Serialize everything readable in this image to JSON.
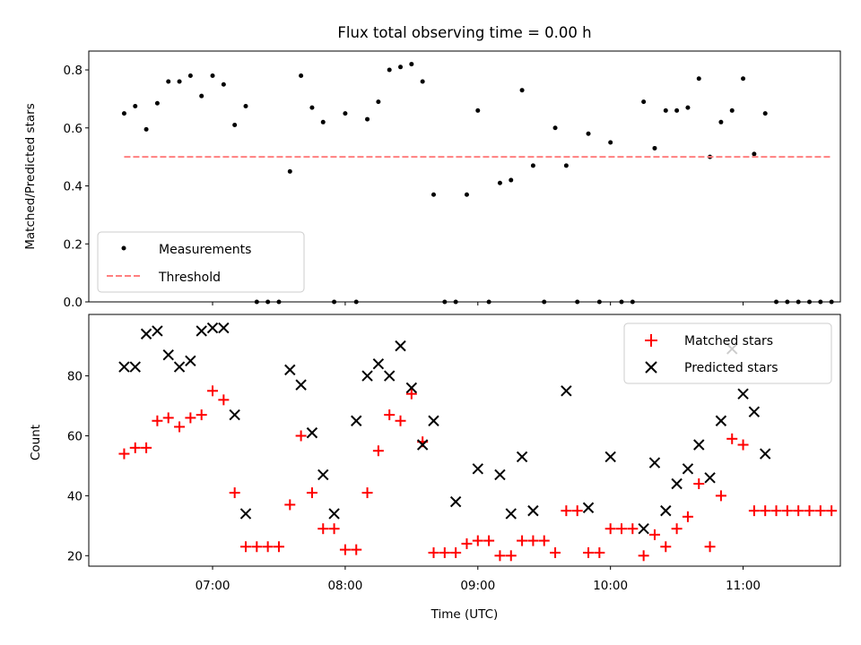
{
  "chart_data": [
    {
      "type": "scatter",
      "title": "Flux total observing time = 0.00 h",
      "ylabel": "Matched/Predicted stars",
      "xlabel": "",
      "xlim": [
        "06:04",
        "11:44"
      ],
      "ylim": [
        0,
        0.865
      ],
      "yticks": [
        "0.0",
        "0.2",
        "0.4",
        "0.6",
        "0.8"
      ],
      "ytick_values": [
        0,
        0.2,
        0.4,
        0.6,
        0.8
      ],
      "xticks": [
        "07:00",
        "08:00",
        "09:00",
        "10:00",
        "11:00"
      ],
      "xtick_labels_visible": false,
      "legend_position": "lower left",
      "series": [
        {
          "name": "Measurements",
          "color": "#000000",
          "marker": "dot",
          "x": [
            "06:20",
            "06:25",
            "06:30",
            "06:35",
            "06:40",
            "06:45",
            "06:50",
            "06:55",
            "07:00",
            "07:05",
            "07:10",
            "07:15",
            "07:20",
            "07:25",
            "07:30",
            "07:35",
            "07:40",
            "07:45",
            "07:50",
            "07:55",
            "08:00",
            "08:05",
            "08:10",
            "08:15",
            "08:20",
            "08:25",
            "08:30",
            "08:35",
            "08:40",
            "08:45",
            "08:50",
            "08:55",
            "09:00",
            "09:05",
            "09:10",
            "09:15",
            "09:20",
            "09:25",
            "09:30",
            "09:35",
            "09:40",
            "09:45",
            "09:50",
            "09:55",
            "10:00",
            "10:05",
            "10:10",
            "10:15",
            "10:20",
            "10:25",
            "10:30",
            "10:35",
            "10:40",
            "10:45",
            "10:50",
            "10:55",
            "11:00",
            "11:05",
            "11:10",
            "11:15",
            "11:20",
            "11:25",
            "11:30",
            "11:35",
            "11:40"
          ],
          "y": [
            0.65,
            0.675,
            0.595,
            0.685,
            0.76,
            0.76,
            0.78,
            0.71,
            0.78,
            0.75,
            0.61,
            0.675,
            0.0,
            0.0,
            0.0,
            0.45,
            0.78,
            0.67,
            0.62,
            0.0,
            0.65,
            0.0,
            0.63,
            0.69,
            0.8,
            0.81,
            0.82,
            0.76,
            0.37,
            0.0,
            0.0,
            0.37,
            0.66,
            0.0,
            0.41,
            0.42,
            0.73,
            0.47,
            0.0,
            0.6,
            0.47,
            0.0,
            0.58,
            0.0,
            0.55,
            0.0,
            0.0,
            0.69,
            0.53,
            0.66,
            0.66,
            0.67,
            0.77,
            0.5,
            0.62,
            0.66,
            0.77,
            0.51,
            0.65,
            0.0,
            0.0,
            0.0,
            0.0,
            0.0,
            0.0
          ]
        },
        {
          "name": "Threshold",
          "color": "#ff7f7f",
          "style": "dashed",
          "x": [
            "06:20",
            "11:40"
          ],
          "y": [
            0.5,
            0.5
          ]
        }
      ]
    },
    {
      "type": "scatter",
      "title": "",
      "ylabel": "Count",
      "xlabel": "Time (UTC)",
      "xlim": [
        "06:04",
        "11:44"
      ],
      "ylim": [
        16.5,
        100.5
      ],
      "yticks": [
        "20",
        "40",
        "60",
        "80"
      ],
      "ytick_values": [
        20,
        40,
        60,
        80
      ],
      "xticks": [
        "07:00",
        "08:00",
        "09:00",
        "10:00",
        "11:00"
      ],
      "legend_position": "upper right",
      "series": [
        {
          "name": "Matched stars",
          "color": "#ff0000",
          "marker": "plus",
          "x": [
            "06:20",
            "06:25",
            "06:30",
            "06:35",
            "06:40",
            "06:45",
            "06:50",
            "06:55",
            "07:00",
            "07:05",
            "07:10",
            "07:15",
            "07:20",
            "07:25",
            "07:30",
            "07:35",
            "07:40",
            "07:45",
            "07:50",
            "07:55",
            "08:00",
            "08:05",
            "08:10",
            "08:15",
            "08:20",
            "08:25",
            "08:30",
            "08:35",
            "08:40",
            "08:45",
            "08:50",
            "08:55",
            "09:00",
            "09:05",
            "09:10",
            "09:15",
            "09:20",
            "09:25",
            "09:30",
            "09:35",
            "09:40",
            "09:45",
            "09:50",
            "09:55",
            "10:00",
            "10:05",
            "10:10",
            "10:15",
            "10:20",
            "10:25",
            "10:30",
            "10:35",
            "10:40",
            "10:45",
            "10:50",
            "10:55",
            "11:00",
            "11:05",
            "11:10",
            "11:15",
            "11:20",
            "11:25",
            "11:30",
            "11:35",
            "11:40"
          ],
          "y": [
            54,
            56,
            56,
            65,
            66,
            63,
            66,
            67,
            75,
            72,
            41,
            23,
            23,
            23,
            23,
            37,
            60,
            41,
            29,
            29,
            22,
            22,
            41,
            55,
            67,
            65,
            74,
            58,
            21,
            21,
            21,
            24,
            25,
            25,
            20,
            20,
            25,
            25,
            25,
            21,
            35,
            35,
            21,
            21,
            29,
            29,
            29,
            20,
            27,
            23,
            29,
            33,
            44,
            23,
            40,
            59,
            57,
            35,
            35,
            35,
            35,
            35,
            35,
            35,
            35
          ]
        },
        {
          "name": "Predicted stars",
          "color": "#000000",
          "marker": "x",
          "x": [
            "06:20",
            "06:25",
            "06:30",
            "06:35",
            "06:40",
            "06:45",
            "06:50",
            "06:55",
            "07:00",
            "07:05",
            "07:10",
            "07:15",
            "07:35",
            "07:40",
            "07:45",
            "07:50",
            "07:55",
            "08:05",
            "08:10",
            "08:15",
            "08:20",
            "08:25",
            "08:30",
            "08:35",
            "08:40",
            "08:50",
            "09:00",
            "09:10",
            "09:15",
            "09:20",
            "09:25",
            "09:40",
            "09:50",
            "10:00",
            "10:15",
            "10:20",
            "10:25",
            "10:30",
            "10:35",
            "10:40",
            "10:45",
            "10:50",
            "10:55",
            "11:00",
            "11:05",
            "11:10"
          ],
          "y": [
            83,
            83,
            94,
            95,
            87,
            83,
            85,
            95,
            96,
            96,
            67,
            34,
            82,
            77,
            61,
            47,
            34,
            65,
            80,
            84,
            80,
            90,
            76,
            57,
            65,
            38,
            49,
            47,
            34,
            53,
            35,
            75,
            36,
            53,
            29,
            51,
            35,
            44,
            49,
            57,
            46,
            65,
            89,
            74,
            68,
            54
          ]
        }
      ]
    }
  ]
}
